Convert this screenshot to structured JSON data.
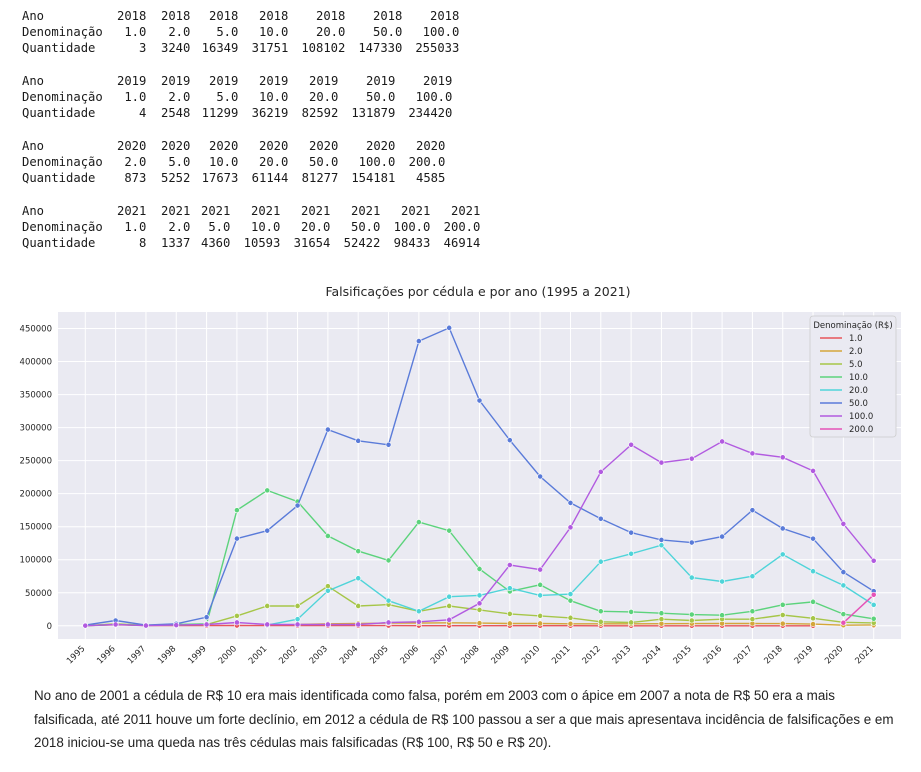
{
  "tables": [
    {
      "rows": [
        {
          "label": "Ano",
          "values": [
            "2018",
            "2018",
            "2018",
            "2018",
            "2018",
            "2018",
            "2018"
          ]
        },
        {
          "label": "Denominação",
          "values": [
            "1.0",
            "2.0",
            "5.0",
            "10.0",
            "20.0",
            "50.0",
            "100.0"
          ]
        },
        {
          "label": "Quantidade",
          "values": [
            "3",
            "3240",
            "16349",
            "31751",
            "108102",
            "147330",
            "255033"
          ]
        }
      ]
    },
    {
      "rows": [
        {
          "label": "Ano",
          "values": [
            "2019",
            "2019",
            "2019",
            "2019",
            "2019",
            "2019",
            "2019"
          ]
        },
        {
          "label": "Denominação",
          "values": [
            "1.0",
            "2.0",
            "5.0",
            "10.0",
            "20.0",
            "50.0",
            "100.0"
          ]
        },
        {
          "label": "Quantidade",
          "values": [
            "4",
            "2548",
            "11299",
            "36219",
            "82592",
            "131879",
            "234420"
          ]
        }
      ]
    },
    {
      "rows": [
        {
          "label": "Ano",
          "values": [
            "2020",
            "2020",
            "2020",
            "2020",
            "2020",
            "2020",
            "2020"
          ]
        },
        {
          "label": "Denominação",
          "values": [
            "2.0",
            "5.0",
            "10.0",
            "20.0",
            "50.0",
            "100.0",
            "200.0"
          ]
        },
        {
          "label": "Quantidade",
          "values": [
            "873",
            "5252",
            "17673",
            "61144",
            "81277",
            "154181",
            "4585"
          ]
        }
      ]
    },
    {
      "rows": [
        {
          "label": "Ano",
          "values": [
            "2021",
            "2021",
            "2021",
            "2021",
            "2021",
            "2021",
            "2021",
            "2021"
          ]
        },
        {
          "label": "Denominação",
          "values": [
            "1.0",
            "2.0",
            "5.0",
            "10.0",
            "20.0",
            "50.0",
            "100.0",
            "200.0"
          ]
        },
        {
          "label": "Quantidade",
          "values": [
            "8",
            "1337",
            "4360",
            "10593",
            "31654",
            "52422",
            "98433",
            "46914"
          ]
        }
      ]
    }
  ],
  "chart_data": {
    "type": "line",
    "title": "Falsificações por cédula e por ano (1995 a 2021)",
    "xlabel": "",
    "ylabel": "",
    "legend_title": "Denominação (R$)",
    "legend_position": "top-right",
    "grid": true,
    "ylim": [
      -20000,
      475000
    ],
    "yticks": [
      0,
      50000,
      100000,
      150000,
      200000,
      250000,
      300000,
      350000,
      400000,
      450000
    ],
    "x": [
      1995,
      1996,
      1997,
      1998,
      1999,
      2000,
      2001,
      2002,
      2003,
      2004,
      2005,
      2006,
      2007,
      2008,
      2009,
      2010,
      2011,
      2012,
      2013,
      2014,
      2015,
      2016,
      2017,
      2018,
      2019,
      2020,
      2021
    ],
    "series": [
      {
        "name": "1.0",
        "color": "#e8545a",
        "values": [
          200,
          1500,
          500,
          400,
          300,
          400,
          300,
          300,
          300,
          300,
          300,
          200,
          200,
          100,
          100,
          100,
          100,
          50,
          30,
          20,
          10,
          10,
          5,
          3,
          4,
          null,
          8
        ]
      },
      {
        "name": "2.0",
        "color": "#d4a63a",
        "values": [
          null,
          null,
          null,
          null,
          null,
          null,
          null,
          2000,
          3000,
          3500,
          4000,
          4000,
          4500,
          4000,
          3500,
          3500,
          3000,
          3000,
          3000,
          3200,
          3300,
          3400,
          3500,
          3240,
          2548,
          873,
          1337
        ]
      },
      {
        "name": "5.0",
        "color": "#a6c648",
        "values": [
          300,
          3000,
          800,
          1000,
          2000,
          15000,
          30000,
          30000,
          60000,
          30000,
          32000,
          22000,
          30000,
          24000,
          18000,
          15000,
          12000,
          6000,
          5000,
          10000,
          8000,
          10000,
          10000,
          16349,
          11299,
          5252,
          4360
        ]
      },
      {
        "name": "10.0",
        "color": "#5cd37c",
        "values": [
          200,
          2000,
          700,
          2000,
          3000,
          175000,
          205000,
          188000,
          136000,
          113000,
          99000,
          157000,
          144000,
          86000,
          52000,
          62000,
          38000,
          22000,
          21000,
          19000,
          17000,
          16000,
          22000,
          31751,
          36219,
          17673,
          10593
        ]
      },
      {
        "name": "20.0",
        "color": "#4fd4d9",
        "values": [
          null,
          null,
          null,
          null,
          null,
          null,
          1000,
          10000,
          53000,
          72000,
          38000,
          22000,
          44000,
          46000,
          57000,
          46000,
          48000,
          97000,
          109000,
          122000,
          73000,
          67000,
          75000,
          108102,
          82592,
          61144,
          31654
        ]
      },
      {
        "name": "50.0",
        "color": "#5a7bd9",
        "values": [
          1000,
          8000,
          1000,
          3000,
          13000,
          132000,
          144000,
          182000,
          297000,
          280000,
          274000,
          431000,
          451000,
          341000,
          281000,
          226000,
          186000,
          162000,
          141000,
          130000,
          126000,
          135000,
          175000,
          147330,
          131879,
          81277,
          52422
        ]
      },
      {
        "name": "100.0",
        "color": "#b25be0",
        "values": [
          200,
          2000,
          300,
          1000,
          2000,
          5000,
          2000,
          2000,
          2000,
          2000,
          5000,
          6000,
          9000,
          34000,
          92000,
          85000,
          149000,
          233000,
          274000,
          247000,
          253000,
          279000,
          261000,
          255033,
          234420,
          154181,
          98433
        ]
      },
      {
        "name": "200.0",
        "color": "#e552b7",
        "values": [
          null,
          null,
          null,
          null,
          null,
          null,
          null,
          null,
          null,
          null,
          null,
          null,
          null,
          null,
          null,
          null,
          null,
          null,
          null,
          null,
          null,
          null,
          null,
          null,
          null,
          4585,
          46914
        ]
      }
    ]
  },
  "paragraph": "No ano de 2001 a cédula de R$ 10 era mais identificada como falsa, porém em 2003 com o ápice em 2007 a nota de R$ 50 era a mais falsificada, até 2011 houve um forte declínio, em 2012 a cédula de R$ 100 passou a ser a que mais apresentava incidência de falsificações e em 2018 iniciou-se uma queda nas três cédulas mais falsificadas (R$ 100, R$ 50 e R$ 20)."
}
